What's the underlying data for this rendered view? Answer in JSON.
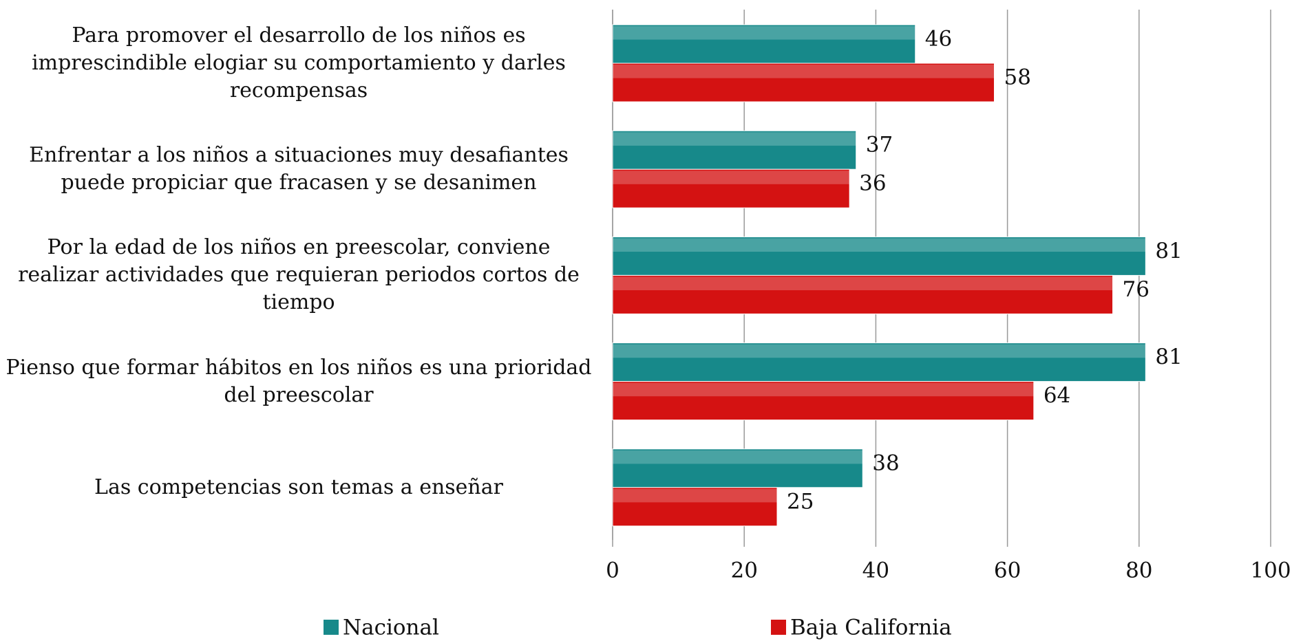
{
  "chart_data": {
    "type": "bar",
    "orientation": "horizontal",
    "categories": [
      "Para promover el desarrollo de los niños es imprescindible elogiar su comportamiento y darles recompensas",
      "Enfrentar a los niños a situaciones muy desafiantes puede propiciar que fracasen y se desanimen",
      "Por la edad de los niños en preescolar, conviene realizar actividades que requieran periodos cortos de tiempo",
      "Pienso que formar hábitos en los niños es una prioridad del preescolar",
      "Las competencias son temas a enseñar"
    ],
    "series": [
      {
        "name": "Nacional",
        "color": "#17898a",
        "values": [
          46,
          37,
          81,
          81,
          38
        ]
      },
      {
        "name": "Baja California",
        "color": "#d41212",
        "values": [
          58,
          36,
          76,
          64,
          25
        ]
      }
    ],
    "xlim": [
      0,
      100
    ],
    "xticks": [
      0,
      20,
      40,
      60,
      80,
      100
    ],
    "grid": true,
    "legend": "bottom"
  }
}
